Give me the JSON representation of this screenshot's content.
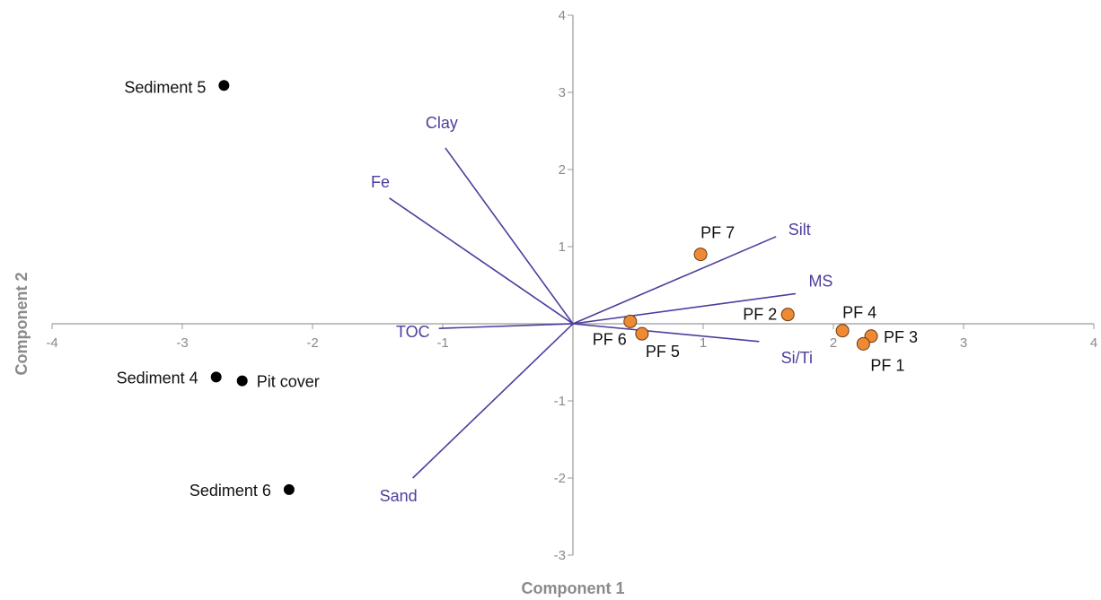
{
  "chart_data": {
    "type": "biplot",
    "xlabel": "Component 1",
    "ylabel": "Component 2",
    "xlim": [
      -4,
      4
    ],
    "ylim": [
      -3,
      4
    ],
    "x_ticks": [
      -4,
      -3,
      -2,
      -1,
      1,
      2,
      3,
      4
    ],
    "y_ticks": [
      -3,
      -2,
      -1,
      1,
      2,
      3,
      4
    ],
    "grid": false,
    "colors": {
      "sediment": "#000000",
      "pf": "#ee8a34",
      "loading": "#4b3f9c",
      "axis": "#9a9a9a"
    },
    "points": [
      {
        "label": "Sediment 5",
        "x": -2.68,
        "y": 3.09,
        "group": "sediment"
      },
      {
        "label": "Sediment 4",
        "x": -2.74,
        "y": -0.69,
        "group": "sediment"
      },
      {
        "label": "Pit cover",
        "x": -2.54,
        "y": -0.74,
        "group": "sediment"
      },
      {
        "label": "Sediment 6",
        "x": -2.18,
        "y": -2.15,
        "group": "sediment"
      },
      {
        "label": "PF 7",
        "x": 0.98,
        "y": 0.9,
        "group": "pf"
      },
      {
        "label": "PF 2",
        "x": 1.65,
        "y": 0.12,
        "group": "pf"
      },
      {
        "label": "PF 6",
        "x": 0.44,
        "y": 0.03,
        "group": "pf"
      },
      {
        "label": "PF 5",
        "x": 0.53,
        "y": -0.13,
        "group": "pf"
      },
      {
        "label": "PF 4",
        "x": 2.07,
        "y": -0.09,
        "group": "pf"
      },
      {
        "label": "PF 3",
        "x": 2.29,
        "y": -0.16,
        "group": "pf"
      },
      {
        "label": "PF 1",
        "x": 2.23,
        "y": -0.26,
        "group": "pf"
      }
    ],
    "loadings": [
      {
        "label": "Clay",
        "x": -0.98,
        "y": 2.28
      },
      {
        "label": "Fe",
        "x": -1.41,
        "y": 1.63
      },
      {
        "label": "TOC",
        "x": -1.03,
        "y": -0.06
      },
      {
        "label": "Sand",
        "x": -1.23,
        "y": -2.0
      },
      {
        "label": "Silt",
        "x": 1.56,
        "y": 1.13
      },
      {
        "label": "MS",
        "x": 1.71,
        "y": 0.39
      },
      {
        "label": "Si/Ti",
        "x": 1.43,
        "y": -0.23
      }
    ]
  }
}
